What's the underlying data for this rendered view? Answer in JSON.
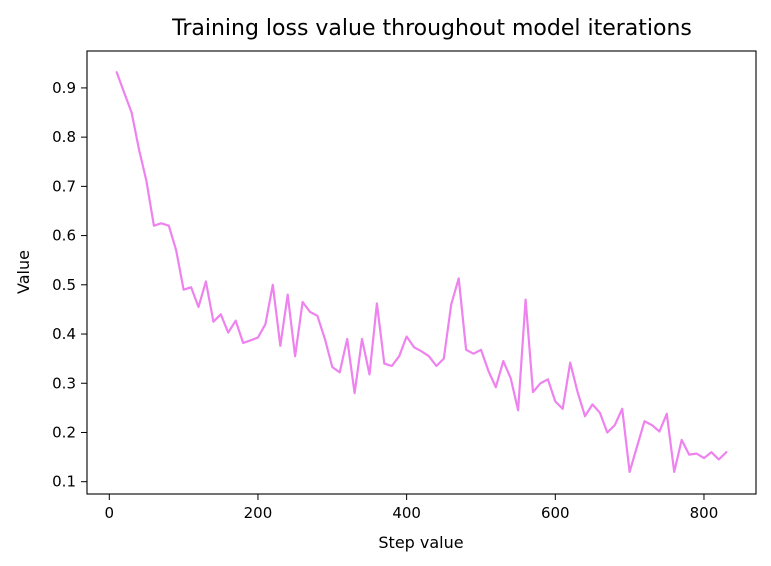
{
  "chart_data": {
    "type": "line",
    "title": "Training loss value throughout model iterations",
    "xlabel": "Step value",
    "ylabel": "Value",
    "xlim": [
      -30,
      870
    ],
    "ylim": [
      0.075,
      0.975
    ],
    "xticks": [
      0,
      200,
      400,
      600,
      800
    ],
    "yticks": [
      0.1,
      0.2,
      0.3,
      0.4,
      0.5,
      0.6,
      0.7,
      0.8,
      0.9
    ],
    "grid": false,
    "line_color": "#ee82ee",
    "series": [
      {
        "x": [
          10,
          20,
          30,
          40,
          50,
          60,
          70,
          80,
          90,
          100,
          110,
          120,
          130,
          140,
          150,
          160,
          170,
          180,
          190,
          200,
          210,
          220,
          230,
          240,
          250,
          260,
          270,
          280,
          290,
          300,
          310,
          320,
          330,
          340,
          350,
          360,
          370,
          380,
          390,
          400,
          410,
          420,
          430,
          440,
          450,
          460,
          470,
          480,
          490,
          500,
          510,
          520,
          530,
          540,
          550,
          560,
          570,
          580,
          590,
          600,
          610,
          620,
          630,
          640,
          650,
          660,
          670,
          680,
          690,
          700,
          710,
          720,
          730,
          740,
          750,
          760,
          770,
          780,
          790,
          800,
          810,
          820,
          830
        ],
        "values": [
          0.932,
          0.89,
          0.85,
          0.775,
          0.71,
          0.62,
          0.625,
          0.62,
          0.57,
          0.49,
          0.495,
          0.455,
          0.507,
          0.425,
          0.44,
          0.403,
          0.427,
          0.382,
          0.387,
          0.393,
          0.42,
          0.5,
          0.376,
          0.48,
          0.355,
          0.465,
          0.445,
          0.437,
          0.39,
          0.333,
          0.322,
          0.39,
          0.28,
          0.39,
          0.318,
          0.462,
          0.34,
          0.335,
          0.355,
          0.395,
          0.373,
          0.365,
          0.355,
          0.335,
          0.35,
          0.46,
          0.513,
          0.368,
          0.36,
          0.368,
          0.325,
          0.292,
          0.345,
          0.31,
          0.245,
          0.47,
          0.282,
          0.3,
          0.308,
          0.263,
          0.248,
          0.342,
          0.282,
          0.233,
          0.257,
          0.24,
          0.2,
          0.215,
          0.248,
          0.12,
          0.172,
          0.223,
          0.215,
          0.202,
          0.238,
          0.12,
          0.185,
          0.155,
          0.157,
          0.148,
          0.16,
          0.145,
          0.16
        ]
      }
    ]
  }
}
